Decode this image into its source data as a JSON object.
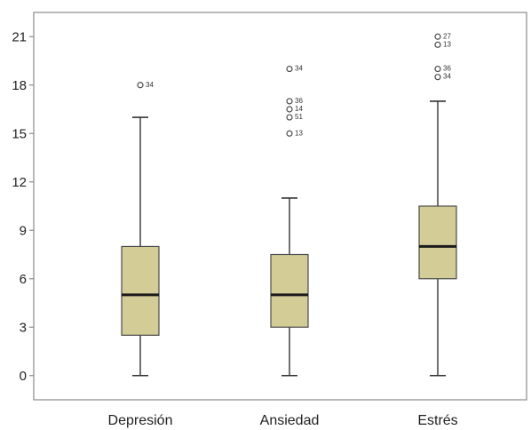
{
  "chart_data": {
    "type": "boxplot",
    "title": "",
    "xlabel": "",
    "ylabel": "",
    "ylim": [
      -1.5,
      22.5
    ],
    "yticks": [
      0,
      3,
      6,
      9,
      12,
      15,
      18,
      21
    ],
    "ytick_labels": [
      "0",
      "3",
      "6",
      "9",
      "12",
      "15",
      "18",
      "21"
    ],
    "grid": false,
    "legend": "none",
    "colors": {
      "box_fill": "#d4cc97",
      "box_stroke": "#4a4a4a",
      "median": "#1a1a1a",
      "whisker": "#333333",
      "outlier": "#4a4a4a",
      "frame": "#8a8a8a",
      "background": "#ffffff"
    },
    "groups": [
      {
        "label": "Depresión",
        "whisker_low": 0,
        "q1": 2.5,
        "median": 5,
        "q3": 8,
        "whisker_high": 16,
        "outliers": [
          {
            "value": 18,
            "label": "34"
          }
        ]
      },
      {
        "label": "Ansiedad",
        "whisker_low": 0,
        "q1": 3,
        "median": 5,
        "q3": 7.5,
        "whisker_high": 11,
        "outliers": [
          {
            "value": 19,
            "label": "34"
          },
          {
            "value": 17,
            "label": "36"
          },
          {
            "value": 16.5,
            "label": "14"
          },
          {
            "value": 16,
            "label": "51"
          },
          {
            "value": 15,
            "label": "13"
          }
        ]
      },
      {
        "label": "Estrés",
        "whisker_low": 0,
        "q1": 6,
        "median": 8,
        "q3": 10.5,
        "whisker_high": 17,
        "outliers": [
          {
            "value": 21,
            "label": "27"
          },
          {
            "value": 20.5,
            "label": "13"
          },
          {
            "value": 19,
            "label": "36"
          },
          {
            "value": 18.5,
            "label": "34"
          }
        ]
      }
    ]
  }
}
